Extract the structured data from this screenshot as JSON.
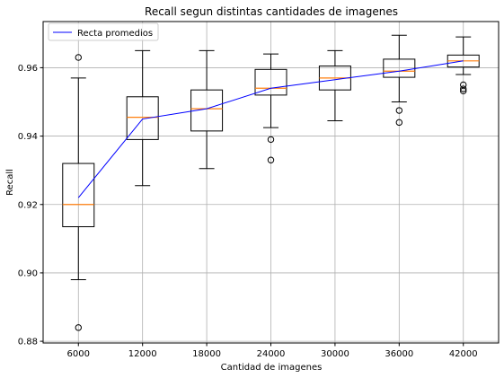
{
  "chart_data": {
    "type": "box",
    "title": "Recall segun distintas cantidades de imagenes",
    "xlabel": "Cantidad de imagenes",
    "ylabel": "Recall",
    "ylim": [
      0.8795,
      0.9735
    ],
    "yticks": [
      0.88,
      0.9,
      0.92,
      0.94,
      0.96
    ],
    "ytick_labels": [
      "0.88",
      "0.90",
      "0.92",
      "0.94",
      "0.96"
    ],
    "grid": true,
    "legend": {
      "placement": "top-left",
      "entries": [
        "Recta promedios"
      ]
    },
    "categories": [
      "6000",
      "12000",
      "18000",
      "24000",
      "30000",
      "36000",
      "42000"
    ],
    "boxes": [
      {
        "category": "6000",
        "whisker_low": 0.898,
        "q1": 0.9135,
        "median": 0.92,
        "q3": 0.932,
        "whisker_high": 0.957,
        "outliers": [
          0.963,
          0.884
        ]
      },
      {
        "category": "12000",
        "whisker_low": 0.9255,
        "q1": 0.939,
        "median": 0.9455,
        "q3": 0.9515,
        "whisker_high": 0.965,
        "outliers": []
      },
      {
        "category": "18000",
        "whisker_low": 0.9305,
        "q1": 0.9415,
        "median": 0.948,
        "q3": 0.9535,
        "whisker_high": 0.965,
        "outliers": []
      },
      {
        "category": "24000",
        "whisker_low": 0.9425,
        "q1": 0.952,
        "median": 0.954,
        "q3": 0.9595,
        "whisker_high": 0.964,
        "outliers": [
          0.939,
          0.933
        ]
      },
      {
        "category": "30000",
        "whisker_low": 0.9445,
        "q1": 0.9535,
        "median": 0.957,
        "q3": 0.9605,
        "whisker_high": 0.965,
        "outliers": []
      },
      {
        "category": "36000",
        "whisker_low": 0.95,
        "q1": 0.9572,
        "median": 0.959,
        "q3": 0.9625,
        "whisker_high": 0.9695,
        "outliers": [
          0.9475,
          0.944
        ]
      },
      {
        "category": "42000",
        "whisker_low": 0.958,
        "q1": 0.9602,
        "median": 0.962,
        "q3": 0.9637,
        "whisker_high": 0.969,
        "outliers": [
          0.955,
          0.9538,
          0.9532
        ]
      }
    ],
    "series": [
      {
        "name": "Recta promedios",
        "type": "line",
        "color": "#0000ff",
        "values": [
          0.922,
          0.945,
          0.948,
          0.954,
          0.9565,
          0.959,
          0.962
        ]
      }
    ],
    "colors": {
      "box": "#000000",
      "median": "#ff7f0e",
      "grid": "#b0b0b0",
      "line": "#0000ff"
    }
  }
}
